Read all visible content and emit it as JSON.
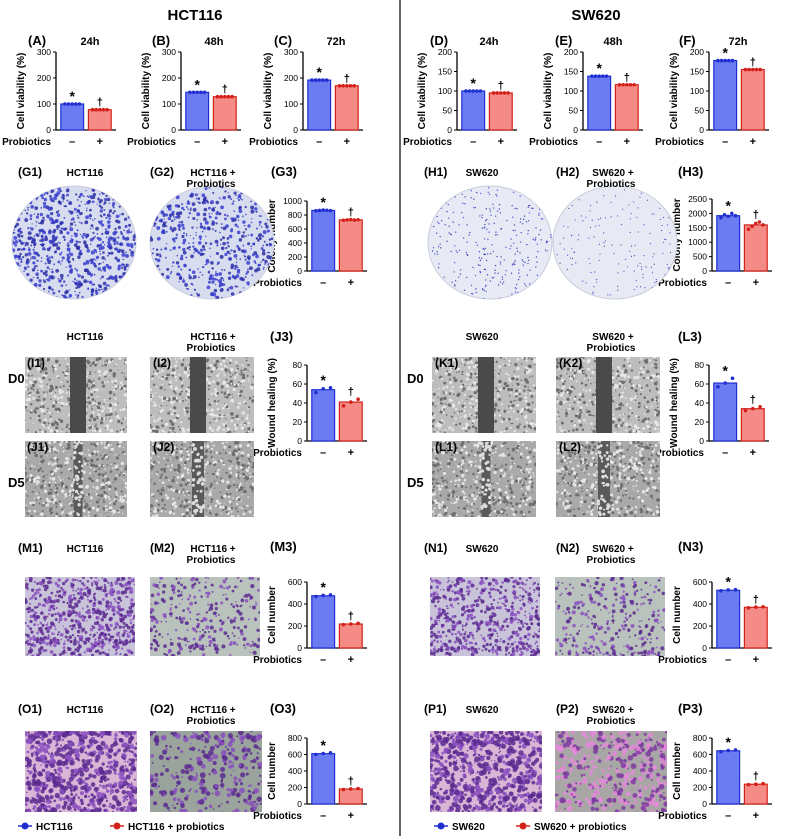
{
  "figure": {
    "groups": [
      {
        "title": "HCT116",
        "line": "HCT116",
        "legend_control": "HCT116",
        "legend_treat": "HCT116 + probiotics"
      },
      {
        "title": "SW620",
        "line": "SW620",
        "legend_control": "SW620",
        "legend_treat": "SW620 + probiotics"
      }
    ],
    "colors": {
      "control": "#6b7bf2",
      "control_edge": "#1f2fd1",
      "treat": "#f58b86",
      "treat_edge": "#d3211a"
    },
    "markers": {
      "star": "*",
      "dagger": "†"
    },
    "xlabel": "Probiotics",
    "xticks": [
      "–",
      "+"
    ],
    "row_labels": {
      "D0": "D0",
      "D5": "D5"
    },
    "photo_treat_suffix": "Probiotics"
  },
  "chart_data": [
    {
      "id": "A",
      "label": "(A)",
      "title": "24h",
      "type": "bar",
      "ylabel": "Cell viability (%)",
      "ylim": [
        0,
        300
      ],
      "yticks": [
        0,
        100,
        200,
        300
      ],
      "values": [
        100,
        78
      ],
      "points": [
        [
          100,
          100,
          100,
          100,
          100
        ],
        [
          78,
          78,
          78,
          78,
          78
        ]
      ]
    },
    {
      "id": "B",
      "label": "(B)",
      "title": "48h",
      "type": "bar",
      "ylabel": "Cell viability (%)",
      "ylim": [
        0,
        300
      ],
      "yticks": [
        0,
        100,
        200,
        300
      ],
      "values": [
        145,
        128
      ],
      "points": [
        [
          145,
          145,
          145,
          145,
          145
        ],
        [
          128,
          128,
          128,
          128,
          128
        ]
      ]
    },
    {
      "id": "C",
      "label": "(C)",
      "title": "72h",
      "type": "bar",
      "ylabel": "Cell viability (%)",
      "ylim": [
        0,
        300
      ],
      "yticks": [
        0,
        100,
        200,
        300
      ],
      "values": [
        192,
        170
      ],
      "points": [
        [
          192,
          192,
          192,
          192,
          192
        ],
        [
          170,
          170,
          170,
          170,
          170
        ]
      ]
    },
    {
      "id": "D",
      "label": "(D)",
      "title": "24h",
      "type": "bar",
      "ylabel": "Cell viability (%)",
      "ylim": [
        0,
        200
      ],
      "yticks": [
        0,
        50,
        100,
        150,
        200
      ],
      "values": [
        100,
        95
      ],
      "points": [
        [
          100,
          100,
          100,
          100,
          100
        ],
        [
          95,
          95,
          95,
          95,
          95
        ]
      ]
    },
    {
      "id": "E",
      "label": "(E)",
      "title": "48h",
      "type": "bar",
      "ylabel": "Cell viability (%)",
      "ylim": [
        0,
        200
      ],
      "yticks": [
        0,
        50,
        100,
        150,
        200
      ],
      "values": [
        138,
        116
      ],
      "points": [
        [
          138,
          138,
          138,
          138,
          138
        ],
        [
          116,
          116,
          116,
          116,
          116
        ]
      ]
    },
    {
      "id": "F",
      "label": "(F)",
      "title": "72h",
      "type": "bar",
      "ylabel": "Cell viability (%)",
      "ylim": [
        0,
        200
      ],
      "yticks": [
        0,
        50,
        100,
        150,
        200
      ],
      "values": [
        178,
        155
      ],
      "points": [
        [
          178,
          178,
          178,
          178,
          178
        ],
        [
          155,
          155,
          155,
          155,
          155
        ]
      ]
    },
    {
      "id": "G3",
      "label": "(G3)",
      "title": "",
      "type": "bar",
      "ylabel": "Colony number",
      "ylim": [
        0,
        1000
      ],
      "yticks": [
        0,
        200,
        400,
        600,
        800,
        1000
      ],
      "values": [
        865,
        730
      ],
      "points": [
        [
          860,
          865,
          870,
          868,
          862
        ],
        [
          725,
          730,
          735,
          728,
          732
        ]
      ]
    },
    {
      "id": "H3",
      "label": "(H3)",
      "title": "",
      "type": "bar",
      "ylabel": "Colony number",
      "ylim": [
        0,
        2500
      ],
      "yticks": [
        0,
        500,
        1000,
        1500,
        2000,
        2500
      ],
      "values": [
        1920,
        1600
      ],
      "points": [
        [
          1850,
          1950,
          1900,
          2000,
          1920
        ],
        [
          1450,
          1550,
          1650,
          1700,
          1600
        ]
      ]
    },
    {
      "id": "J3",
      "label": "(J3)",
      "title": "",
      "type": "bar",
      "ylabel": "Wound healing (%)",
      "ylim": [
        0,
        80
      ],
      "yticks": [
        0,
        20,
        40,
        60,
        80
      ],
      "values": [
        54,
        41
      ],
      "points": [
        [
          51,
          55,
          56
        ],
        [
          37,
          41,
          44
        ]
      ]
    },
    {
      "id": "L3",
      "label": "(L3)",
      "title": "",
      "type": "bar",
      "ylabel": "Wound healing (%)",
      "ylim": [
        0,
        80
      ],
      "yticks": [
        0,
        20,
        40,
        60,
        80
      ],
      "values": [
        61,
        34
      ],
      "points": [
        [
          57,
          61,
          66
        ],
        [
          32,
          34,
          36
        ]
      ]
    },
    {
      "id": "M3",
      "label": "(M3)",
      "title": "",
      "type": "bar",
      "ylabel": "Cell number",
      "ylim": [
        0,
        600
      ],
      "yticks": [
        0,
        200,
        400,
        600
      ],
      "values": [
        475,
        218
      ],
      "points": [
        [
          468,
          478,
          482
        ],
        [
          212,
          218,
          224
        ]
      ]
    },
    {
      "id": "N3",
      "label": "(N3)",
      "title": "",
      "type": "bar",
      "ylabel": "Cell number",
      "ylim": [
        0,
        600
      ],
      "yticks": [
        0,
        200,
        400,
        600
      ],
      "values": [
        525,
        370
      ],
      "points": [
        [
          520,
          528,
          530
        ],
        [
          365,
          372,
          375
        ]
      ]
    },
    {
      "id": "O3",
      "label": "(O3)",
      "title": "",
      "type": "bar",
      "ylabel": "Cell number",
      "ylim": [
        0,
        800
      ],
      "yticks": [
        0,
        200,
        400,
        600,
        800
      ],
      "values": [
        610,
        182
      ],
      "points": [
        [
          600,
          612,
          620
        ],
        [
          175,
          182,
          188
        ]
      ]
    },
    {
      "id": "P3",
      "label": "(P3)",
      "title": "",
      "type": "bar",
      "ylabel": "Cell number",
      "ylim": [
        0,
        800
      ],
      "yticks": [
        0,
        200,
        400,
        600,
        800
      ],
      "values": [
        645,
        240
      ],
      "points": [
        [
          635,
          648,
          655
        ],
        [
          235,
          240,
          246
        ]
      ]
    }
  ],
  "photos": [
    {
      "id": "G1",
      "label": "(G1)",
      "kind": "colony",
      "intensity": "dense",
      "group": 0,
      "treated": false
    },
    {
      "id": "G2",
      "label": "(G2)",
      "kind": "colony",
      "intensity": "medium",
      "group": 0,
      "treated": true
    },
    {
      "id": "H1",
      "label": "(H1)",
      "kind": "colony",
      "intensity": "sparse",
      "group": 1,
      "treated": false
    },
    {
      "id": "H2",
      "label": "(H2)",
      "kind": "colony",
      "intensity": "faint",
      "group": 1,
      "treated": true
    },
    {
      "id": "I1",
      "label": "(I1)",
      "kind": "wound",
      "group": 0,
      "treated": false,
      "header": true
    },
    {
      "id": "I2",
      "label": "(I2)",
      "kind": "wound",
      "group": 0,
      "treated": true,
      "header": true
    },
    {
      "id": "J1",
      "label": "(J1)",
      "kind": "wound5",
      "group": 0,
      "treated": false,
      "header": false
    },
    {
      "id": "J2",
      "label": "(J2)",
      "kind": "wound5",
      "group": 0,
      "treated": true,
      "header": false
    },
    {
      "id": "K1",
      "label": "(K1)",
      "kind": "wound",
      "group": 1,
      "treated": false,
      "header": true
    },
    {
      "id": "K2",
      "label": "(K2)",
      "kind": "wound",
      "group": 1,
      "treated": true,
      "header": true
    },
    {
      "id": "L1",
      "label": "(L1)",
      "kind": "wound5",
      "group": 1,
      "treated": false,
      "header": false
    },
    {
      "id": "L2",
      "label": "(L2)",
      "kind": "wound5",
      "group": 1,
      "treated": true,
      "header": false
    },
    {
      "id": "M1",
      "label": "(M1)",
      "kind": "migrate",
      "intensity": "dense",
      "group": 0,
      "treated": false
    },
    {
      "id": "M2",
      "label": "(M2)",
      "kind": "migrate",
      "intensity": "light",
      "group": 0,
      "treated": true
    },
    {
      "id": "N1",
      "label": "(N1)",
      "kind": "migrate",
      "intensity": "medium",
      "group": 1,
      "treated": false
    },
    {
      "id": "N2",
      "label": "(N2)",
      "kind": "migrate",
      "intensity": "light",
      "group": 1,
      "treated": true
    },
    {
      "id": "O1",
      "label": "(O1)",
      "kind": "invade",
      "intensity": "dense",
      "group": 0,
      "treated": false
    },
    {
      "id": "O2",
      "label": "(O2)",
      "kind": "invade",
      "intensity": "light",
      "group": 0,
      "treated": true
    },
    {
      "id": "P1",
      "label": "(P1)",
      "kind": "invade",
      "intensity": "dense",
      "group": 1,
      "treated": false
    },
    {
      "id": "P2",
      "label": "(P2)",
      "kind": "invade",
      "intensity": "pink",
      "group": 1,
      "treated": true
    }
  ]
}
